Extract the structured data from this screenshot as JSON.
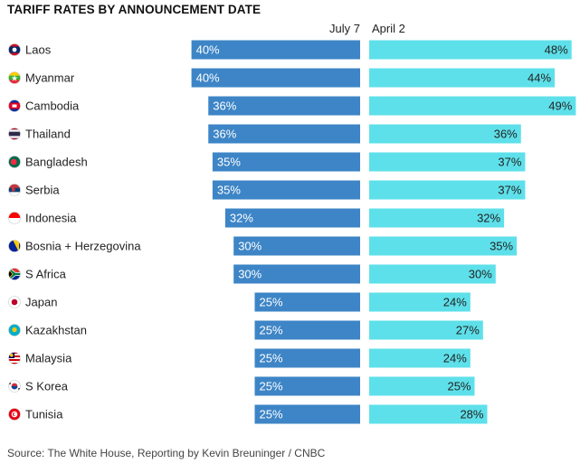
{
  "chart_data": {
    "type": "bar",
    "title": "TARIFF RATES BY ANNOUNCEMENT DATE",
    "source": "Source: The White House, Reporting by Kevin Breuninger / CNBC",
    "series": [
      {
        "name": "July 7",
        "color": "#3d85c6",
        "values": [
          40,
          40,
          36,
          36,
          35,
          35,
          32,
          30,
          30,
          25,
          25,
          25,
          25,
          25
        ]
      },
      {
        "name": "April 2",
        "color": "#5ee0ea",
        "values": [
          48,
          44,
          49,
          36,
          37,
          37,
          32,
          35,
          30,
          24,
          27,
          24,
          25,
          28
        ]
      }
    ],
    "categories": [
      "Laos",
      "Myanmar",
      "Cambodia",
      "Thailand",
      "Bangladesh",
      "Serbia",
      "Indonesia",
      "Bosnia + Herzegovina",
      "S Africa",
      "Japan",
      "Kazakhstan",
      "Malaysia",
      "S Korea",
      "Tunisia"
    ],
    "flag_icons": [
      "laos-flag-icon",
      "myanmar-flag-icon",
      "cambodia-flag-icon",
      "thailand-flag-icon",
      "bangladesh-flag-icon",
      "serbia-flag-icon",
      "indonesia-flag-icon",
      "bosnia-flag-icon",
      "south-africa-flag-icon",
      "japan-flag-icon",
      "kazakhstan-flag-icon",
      "malaysia-flag-icon",
      "south-korea-flag-icon",
      "tunisia-flag-icon"
    ],
    "value_suffix": "%",
    "layout": "mirrored-horizontal-bars"
  }
}
